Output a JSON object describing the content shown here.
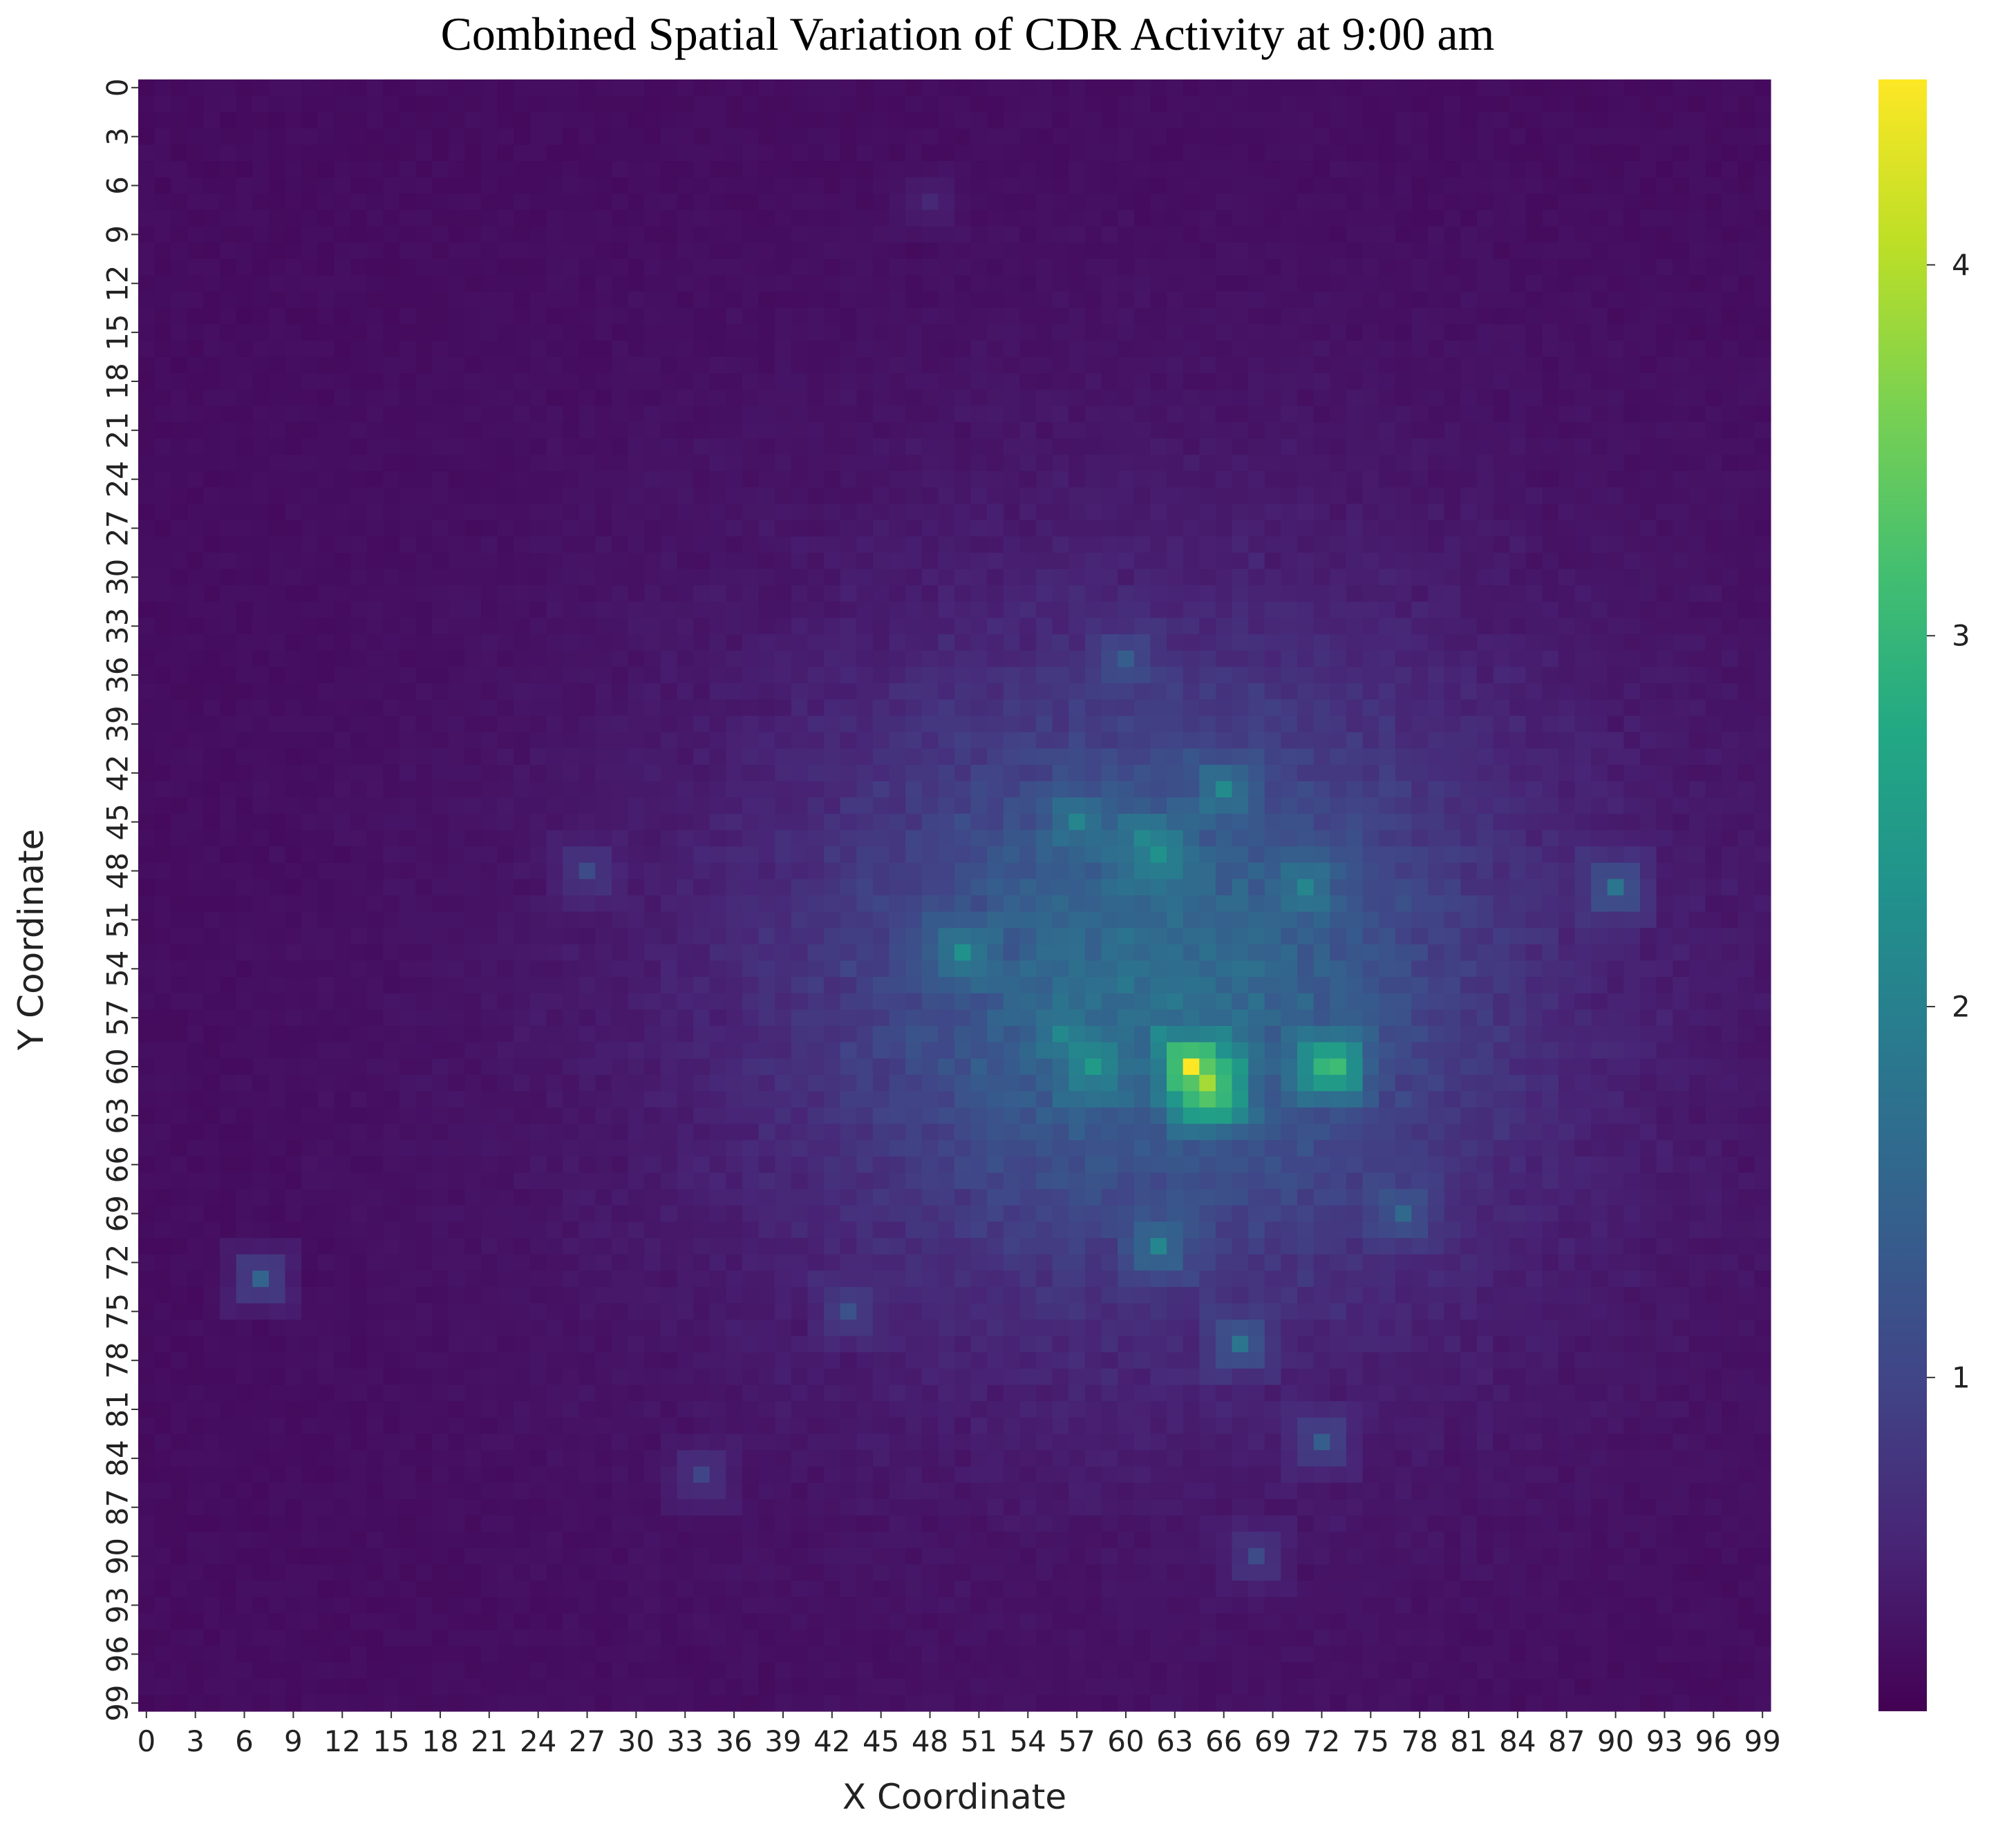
{
  "chart_data": {
    "type": "heatmap",
    "title": "Combined Spatial Variation of CDR Activity at 9:00 am",
    "xlabel": "X Coordinate",
    "ylabel": "Y Coordinate",
    "grid_size": [
      100,
      100
    ],
    "x_ticks": [
      "0",
      "3",
      "6",
      "9",
      "12",
      "15",
      "18",
      "21",
      "24",
      "27",
      "30",
      "33",
      "36",
      "39",
      "42",
      "45",
      "48",
      "51",
      "54",
      "57",
      "60",
      "63",
      "66",
      "69",
      "72",
      "75",
      "78",
      "81",
      "84",
      "87",
      "90",
      "93",
      "96",
      "99"
    ],
    "y_ticks": [
      "0",
      "3",
      "6",
      "9",
      "12",
      "15",
      "18",
      "21",
      "24",
      "27",
      "30",
      "33",
      "36",
      "39",
      "42",
      "45",
      "48",
      "51",
      "54",
      "57",
      "60",
      "63",
      "66",
      "69",
      "72",
      "75",
      "78",
      "81",
      "84",
      "87",
      "90",
      "93",
      "96",
      "99"
    ],
    "colormap": "viridis",
    "value_range": [
      0.1,
      4.5
    ],
    "colorbar_ticks": [
      "1",
      "2",
      "3",
      "4"
    ],
    "colorbar_tick_values": [
      1,
      2,
      3,
      4
    ],
    "baseline_value": 0.2,
    "description_of_hotspots": [
      {
        "x": 48,
        "y": 7,
        "value": 0.6
      },
      {
        "x": 60,
        "y": 35,
        "value": 1.4
      },
      {
        "x": 57,
        "y": 45,
        "value": 2.1
      },
      {
        "x": 61,
        "y": 46,
        "value": 2.0
      },
      {
        "x": 66,
        "y": 43,
        "value": 2.2
      },
      {
        "x": 62,
        "y": 47,
        "value": 2.3
      },
      {
        "x": 71,
        "y": 49,
        "value": 2.1
      },
      {
        "x": 50,
        "y": 53,
        "value": 2.3
      },
      {
        "x": 56,
        "y": 58,
        "value": 2.1
      },
      {
        "x": 58,
        "y": 60,
        "value": 2.5
      },
      {
        "x": 64,
        "y": 60,
        "value": 4.5
      },
      {
        "x": 65,
        "y": 61,
        "value": 3.9
      },
      {
        "x": 65,
        "y": 62,
        "value": 3.3
      },
      {
        "x": 66,
        "y": 61,
        "value": 2.8
      },
      {
        "x": 72,
        "y": 60,
        "value": 2.9
      },
      {
        "x": 73,
        "y": 60,
        "value": 3.1
      },
      {
        "x": 62,
        "y": 71,
        "value": 2.1
      },
      {
        "x": 90,
        "y": 49,
        "value": 1.8
      },
      {
        "x": 7,
        "y": 73,
        "value": 1.5
      },
      {
        "x": 77,
        "y": 69,
        "value": 1.6
      },
      {
        "x": 67,
        "y": 77,
        "value": 1.8
      },
      {
        "x": 72,
        "y": 83,
        "value": 1.4
      },
      {
        "x": 68,
        "y": 90,
        "value": 1.1
      },
      {
        "x": 34,
        "y": 85,
        "value": 1.0
      },
      {
        "x": 27,
        "y": 48,
        "value": 1.1
      },
      {
        "x": 43,
        "y": 75,
        "value": 1.2
      }
    ]
  }
}
